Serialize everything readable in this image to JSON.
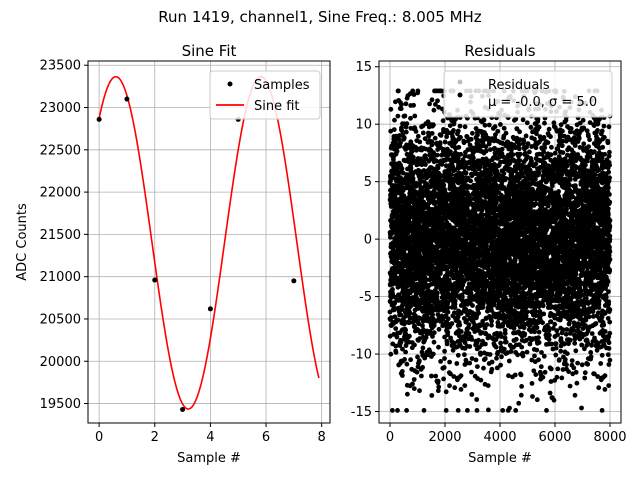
{
  "figure": {
    "suptitle": "Run 1419, channel1, Sine Freq.: 8.005 MHz"
  },
  "chart_data": [
    {
      "type": "line",
      "title": "Sine Fit",
      "xlabel": "Sample #",
      "ylabel": "ADC Counts",
      "xlim": [
        -0.4,
        8.3
      ],
      "ylim": [
        19270,
        23550
      ],
      "x_ticks": [
        0,
        2,
        4,
        6,
        8
      ],
      "y_ticks": [
        19500,
        20000,
        20500,
        21000,
        21500,
        22000,
        22500,
        23000,
        23500
      ],
      "grid": true,
      "legend_position": "top-right",
      "colors": {
        "samples": "#000000",
        "fit": "#ff0000"
      },
      "series": [
        {
          "name": "Samples",
          "style": "points",
          "x": [
            0,
            1,
            2,
            3,
            4,
            5,
            7
          ],
          "y": [
            22860,
            23100,
            20960,
            19430,
            20620,
            22860,
            20950
          ]
        },
        {
          "name": "Sine fit",
          "style": "line",
          "fit": {
            "offset": 21400,
            "amplitude": 1965,
            "period_samples": 5.21,
            "peak_at": 0.6,
            "x_range": [
              0,
              7.9
            ]
          }
        }
      ]
    },
    {
      "type": "scatter",
      "title": "Residuals",
      "xlabel": "Sample #",
      "ylabel": "",
      "xlim": [
        -400,
        8400
      ],
      "ylim": [
        -16,
        15.5
      ],
      "x_ticks": [
        0,
        2000,
        4000,
        6000,
        8000
      ],
      "y_ticks": [
        -15,
        -10,
        -5,
        0,
        5,
        10,
        15
      ],
      "grid": true,
      "legend_position": "top-right",
      "colors": {
        "residuals_legend": "#bfbfbf",
        "points": "#000000"
      },
      "series": [
        {
          "name": "Residuals",
          "n_points": 8000,
          "x_range": [
            0,
            8000
          ],
          "mean": -0.0,
          "std": 5.0,
          "min": -14.9,
          "max": 12.9
        }
      ],
      "legend_entries": [
        "Residuals",
        "$\\mu$ = -0.0, $\\sigma$ = 5.0"
      ],
      "legend_display": [
        "Residuals",
        "μ = -0.0, σ = 5.0"
      ]
    }
  ]
}
